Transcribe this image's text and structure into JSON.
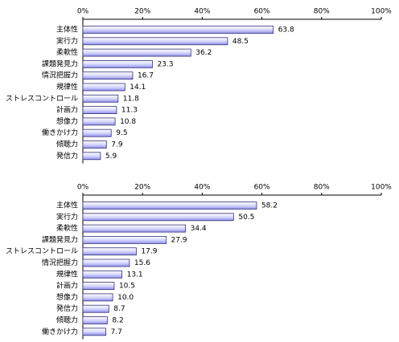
{
  "chart_data": [
    {
      "type": "bar",
      "orientation": "horizontal",
      "categories": [
        "主体性",
        "実行力",
        "柔軟性",
        "課題発見力",
        "情況把握力",
        "規律性",
        "ストレスコントロール",
        "計画力",
        "想像力",
        "働きかけ力",
        "傾聴力",
        "発信力"
      ],
      "values": [
        63.8,
        48.5,
        36.2,
        23.3,
        16.7,
        14.1,
        11.8,
        11.3,
        10.8,
        9.5,
        7.9,
        5.9
      ],
      "color": "#a8a8f0",
      "xlim": [
        0,
        100
      ],
      "xticks": [
        {
          "value": 0,
          "label": "0%"
        },
        {
          "value": 20,
          "label": "20%"
        },
        {
          "value": 40,
          "label": "40%"
        },
        {
          "value": 60,
          "label": "60%"
        },
        {
          "value": 80,
          "label": "80%"
        },
        {
          "value": 100,
          "label": "100%"
        }
      ]
    },
    {
      "type": "bar",
      "orientation": "horizontal",
      "categories": [
        "主体性",
        "実行力",
        "柔軟性",
        "課題発見力",
        "ストレスコントロール",
        "情況把握力",
        "規律性",
        "計画力",
        "想像力",
        "発信力",
        "傾聴力",
        "働きかけ力"
      ],
      "values": [
        58.2,
        50.5,
        34.4,
        27.9,
        17.9,
        15.6,
        13.1,
        10.5,
        10.0,
        8.7,
        8.2,
        7.7
      ],
      "value_labels": [
        "58.2",
        "50.5",
        "34.4",
        "27.9",
        "17.9",
        "15.6",
        "13.1",
        "10.5",
        "10.0",
        "8.7",
        "8.2",
        "7.7"
      ],
      "color": "#a8a8f0",
      "xlim": [
        0,
        100
      ],
      "xticks": [
        {
          "value": 0,
          "label": "0%"
        },
        {
          "value": 20,
          "label": "20%"
        },
        {
          "value": 40,
          "label": "40%"
        },
        {
          "value": 60,
          "label": "60%"
        },
        {
          "value": 80,
          "label": "80%"
        },
        {
          "value": 100,
          "label": "100%"
        }
      ]
    }
  ]
}
